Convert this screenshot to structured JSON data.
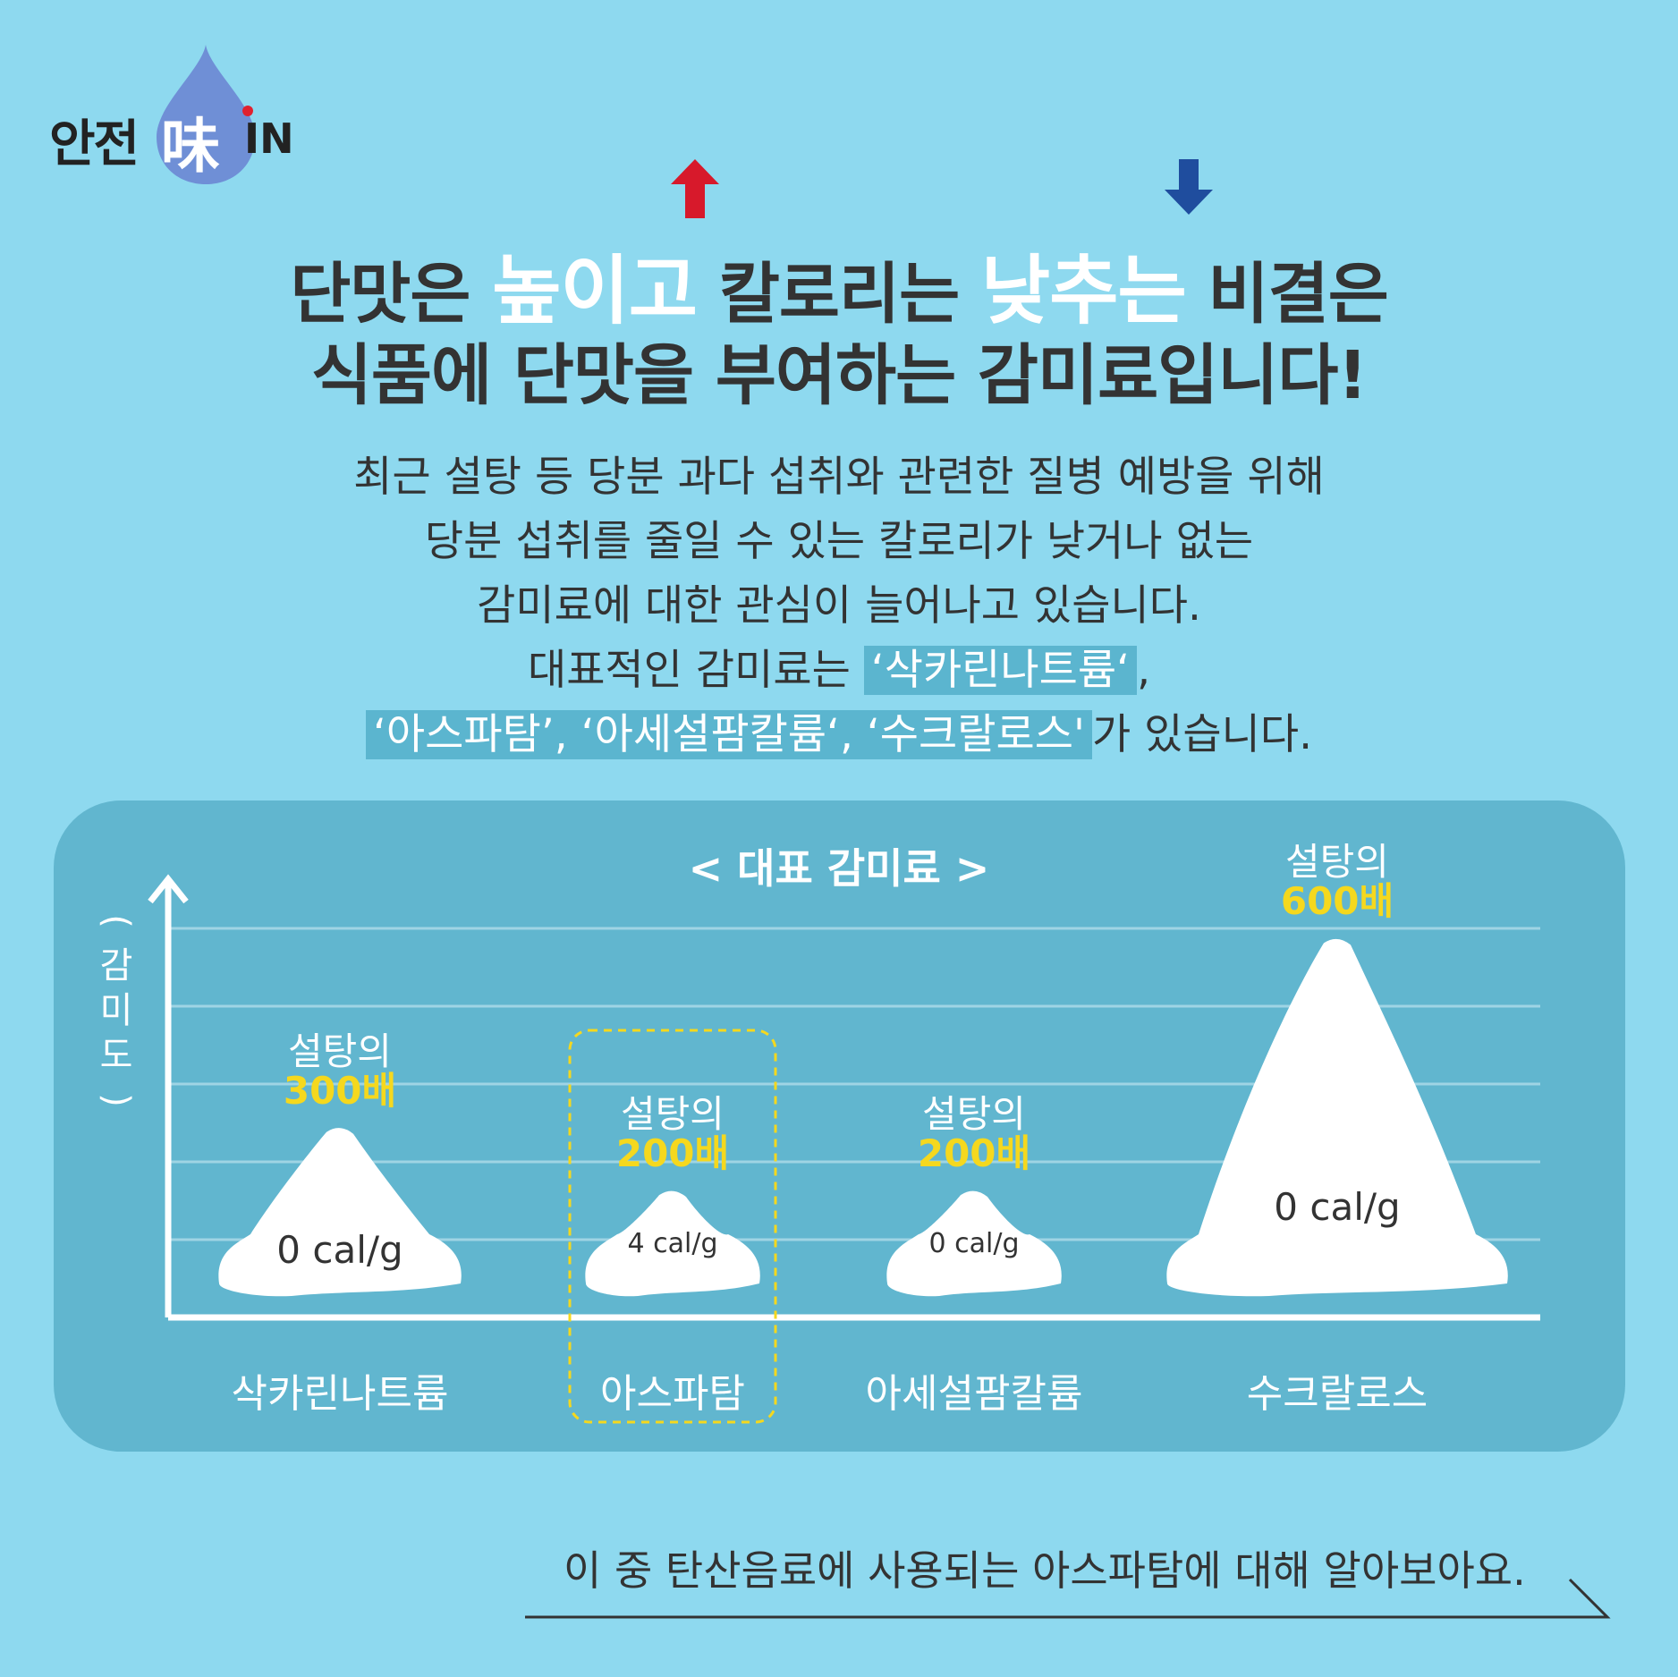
{
  "logo": {
    "text": "안전",
    "hanja": "味",
    "suffix": "IN"
  },
  "headline": {
    "line1_a": "단맛은 ",
    "line1_b": "높이고",
    "line1_c": " 칼로리는 ",
    "line1_d": "낮추는",
    "line1_e": " 비결은",
    "line2": "식품에 단맛을 부여하는 감미료입니다!"
  },
  "body": {
    "l1": "최근 설탕 등 당분 과다 섭취와 관련한 질병 예방을 위해",
    "l2": "당분 섭취를 줄일 수 있는 칼로리가 낮거나 없는",
    "l3": "감미료에 대한 관심이 늘어나고 있습니다.",
    "l4_a": "대표적인 감미료는 ",
    "l4_b": "‘삭카린나트륨‘",
    "l4_c": ",",
    "l5_b": "‘아스파탐’, ‘아세설팜칼륨‘, ‘수크랄로스'",
    "l5_c": "가 있습니다."
  },
  "colors": {
    "up_arrow": "#d7192b",
    "down_arrow": "#1f4d9e",
    "highlight": "#f5d81e",
    "panel": "#61b6cf",
    "background": "#8ed9ef"
  },
  "chart_data": {
    "type": "bar",
    "title": "< 대표 감미료 >",
    "ylabel": "(감미도)",
    "categories": [
      "삭카린나트륨",
      "아스파탐",
      "아세설팜칼륨",
      "수크랄로스"
    ],
    "values": [
      300,
      200,
      200,
      600
    ],
    "value_labels": [
      "300배",
      "200배",
      "200배",
      "600배"
    ],
    "annotation_prefix": "설탕의",
    "calories": [
      "0 cal/g",
      "4 cal/g",
      "0 cal/g",
      "0 cal/g"
    ],
    "highlighted_category": "아스파탐",
    "ylim": [
      0,
      700
    ],
    "grid": true
  },
  "footer": {
    "text": "이 중 탄산음료에 사용되는 아스파탐에 대해 알아보아요."
  }
}
